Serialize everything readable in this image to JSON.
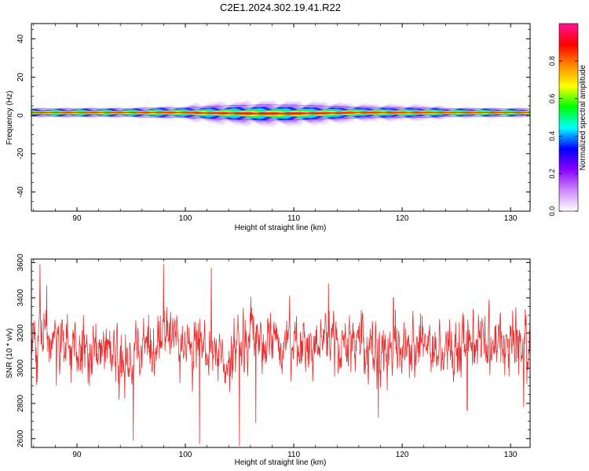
{
  "title": "C2E1.2024.302.19.41.R22",
  "chart_data": [
    {
      "type": "heatmap",
      "xlabel": "Height of straight line (km)",
      "ylabel": "Frequency (Hz)",
      "xlim": [
        85.8,
        131.8
      ],
      "ylim": [
        -50,
        48
      ],
      "xticks": [
        90,
        100,
        110,
        120,
        130
      ],
      "yticks": [
        -40,
        -20,
        0,
        20,
        40
      ],
      "grid": false,
      "band": {
        "center_hz": 1.5,
        "core_halfwidth_hz": [
          [
            86,
            1.2
          ],
          [
            90,
            1.3
          ],
          [
            95,
            1.3
          ],
          [
            97.5,
            1.6
          ],
          [
            100,
            1.6
          ],
          [
            101,
            1.8
          ],
          [
            104,
            2.2
          ],
          [
            107,
            2.5
          ],
          [
            110,
            2.4
          ],
          [
            113,
            2.1
          ],
          [
            116,
            1.7
          ],
          [
            120,
            1.6
          ],
          [
            123,
            1.5
          ],
          [
            124,
            1.3
          ],
          [
            128,
            1.3
          ],
          [
            131.8,
            1.2
          ]
        ],
        "halo_halfwidth_hz": [
          [
            86,
            2
          ],
          [
            90,
            2.2
          ],
          [
            95,
            2.3
          ],
          [
            97.5,
            2.9
          ],
          [
            100,
            3
          ],
          [
            101,
            4.2
          ],
          [
            104,
            5.2
          ],
          [
            107,
            5.8
          ],
          [
            110,
            5.6
          ],
          [
            113,
            5
          ],
          [
            116,
            4
          ],
          [
            120,
            3.6
          ],
          [
            123,
            3.4
          ],
          [
            124,
            2.4
          ],
          [
            128,
            2.2
          ],
          [
            131.8,
            2
          ]
        ]
      },
      "colorbar": {
        "label": "Normalized spectral amplitude",
        "ticks": [
          "0.0",
          "0.2",
          "0.4",
          "0.6",
          "0.8"
        ],
        "tick_values": [
          0.0,
          0.2,
          0.4,
          0.6,
          0.8
        ],
        "range": [
          0,
          1
        ],
        "colormap": [
          "#ffffff",
          "#cc88ff",
          "#8800ff",
          "#0000ff",
          "#00ffff",
          "#00ff00",
          "#ffff00",
          "#ff8800",
          "#ff0000",
          "#ff1493"
        ]
      }
    },
    {
      "type": "line",
      "xlabel": "Height of straight line (km)",
      "ylabel": "SNR (10 * v/v)",
      "xlim": [
        85.8,
        131.8
      ],
      "ylim": [
        2550,
        3620
      ],
      "xticks": [
        90,
        100,
        110,
        120,
        130
      ],
      "yticks": [
        2600,
        2800,
        3000,
        3200,
        3400,
        3600
      ],
      "grid": false,
      "series": [
        {
          "color": "#e83030",
          "mean_profile": [
            [
              86,
              3120
            ],
            [
              88,
              3150
            ],
            [
              90,
              3080
            ],
            [
              92,
              3120
            ],
            [
              94,
              3060
            ],
            [
              95,
              3050
            ],
            [
              96,
              3120
            ],
            [
              98,
              3180
            ],
            [
              100,
              3140
            ],
            [
              102,
              3100
            ],
            [
              104,
              3080
            ],
            [
              106,
              3180
            ],
            [
              108,
              3160
            ],
            [
              110,
              3150
            ],
            [
              112,
              3140
            ],
            [
              114,
              3180
            ],
            [
              116,
              3160
            ],
            [
              118,
              3050
            ],
            [
              120,
              3150
            ],
            [
              122,
              3160
            ],
            [
              124,
              3120
            ],
            [
              126,
              3130
            ],
            [
              128,
              3170
            ],
            [
              130,
              3180
            ],
            [
              131.8,
              3170
            ]
          ],
          "spread": 110,
          "extremes": [
            [
              86.6,
              3590
            ],
            [
              87.2,
              3470
            ],
            [
              95.2,
              2590
            ],
            [
              98.0,
              3590
            ],
            [
              101.3,
              2570
            ],
            [
              102.4,
              3570
            ],
            [
              105.0,
              2560
            ],
            [
              106.5,
              2690
            ],
            [
              113.2,
              3480
            ],
            [
              117.8,
              2720
            ],
            [
              119.2,
              3400
            ],
            [
              126.0,
              2760
            ],
            [
              131.2,
              2780
            ]
          ]
        }
      ]
    }
  ]
}
